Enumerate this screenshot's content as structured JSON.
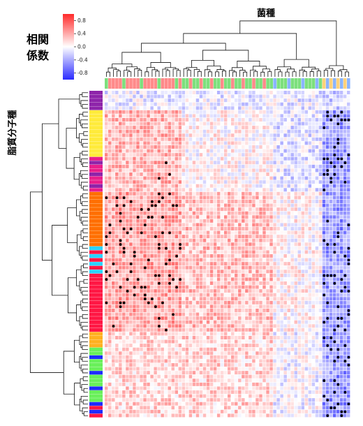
{
  "chart_data": {
    "type": "heatmap",
    "title": "",
    "xlabel": "菌種",
    "ylabel": "脂質分子種",
    "colorbar": {
      "title_line1": "相関",
      "title_line2": "係数",
      "range": [
        -1,
        1
      ],
      "ticks": [
        "0.8",
        "0.4",
        "0.0",
        "-0.4",
        "-0.8"
      ],
      "tick_values": [
        0.8,
        0.4,
        0.0,
        -0.4,
        -0.8
      ],
      "colormap": [
        "#2b2bff",
        "#ffffff",
        "#ff2a2a"
      ]
    },
    "n_rows": 84,
    "n_cols": 70,
    "column_clusters": [
      {
        "from": 0,
        "to": 22,
        "level": 0.35
      },
      {
        "from": 22,
        "to": 48,
        "level": 0.4
      },
      {
        "from": 48,
        "to": 62,
        "level": 0.45
      },
      {
        "from": 62,
        "to": 70,
        "level": 0.7
      }
    ],
    "row_clusters": [
      {
        "from": 0,
        "to": 5,
        "level": 0.5
      },
      {
        "from": 5,
        "to": 26,
        "level": 0.55
      },
      {
        "from": 26,
        "to": 62,
        "level": 0.6
      },
      {
        "from": 62,
        "to": 84,
        "level": 0.65
      }
    ],
    "row_group_colors": [
      "#8e24aa",
      "#ffeb3b",
      "#e91e8c",
      "#ff6f00",
      "#29d3ff",
      "#ff1744",
      "#69f05a",
      "#ffb020",
      "#1e2bff"
    ],
    "column_group_colors": [
      "#ff8a8a",
      "#7de07d",
      "#8ab4ff",
      "#ffd27a"
    ],
    "significance_marker": "●"
  }
}
